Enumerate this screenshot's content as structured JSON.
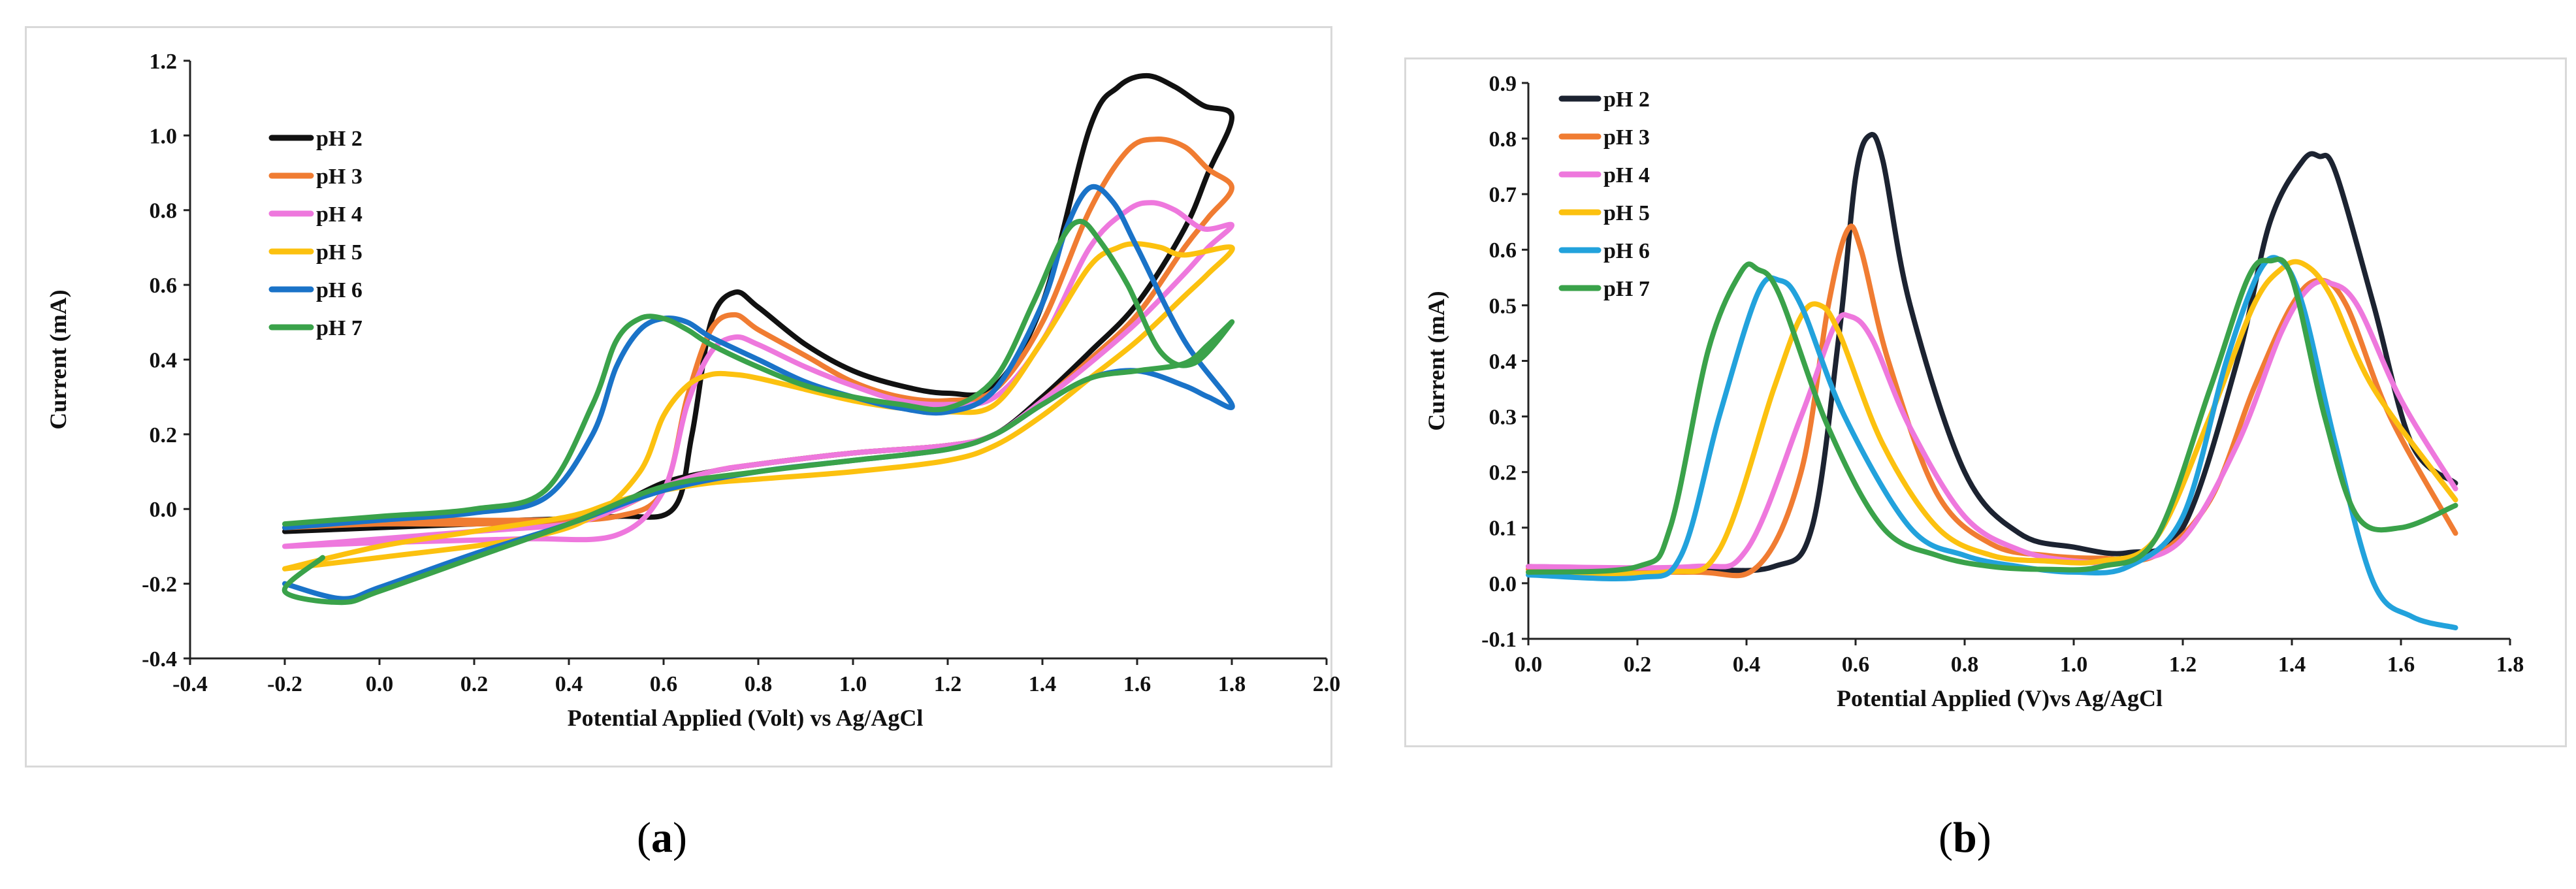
{
  "figure": {
    "captions": {
      "a": "a",
      "b": "b"
    }
  },
  "chart_data": [
    {
      "id": "a",
      "type": "line",
      "title": "",
      "xlabel": "Potential Applied (Volt) vs Ag/AgCl",
      "ylabel": "Current (mA)",
      "xlim": [
        -0.4,
        2.0
      ],
      "ylim": [
        -0.4,
        1.2
      ],
      "x_ticks": [
        -0.4,
        -0.2,
        0.0,
        0.2,
        0.4,
        0.6,
        0.8,
        1.0,
        1.2,
        1.4,
        1.6,
        1.8,
        2.0
      ],
      "y_ticks": [
        -0.4,
        -0.2,
        0.0,
        0.2,
        0.4,
        0.6,
        0.8,
        1.0,
        1.2
      ],
      "grid": false,
      "legend": "top-left",
      "series": [
        {
          "name": "pH 2",
          "color": "#111111",
          "x": [
            -0.2,
            0.0,
            0.3,
            0.5,
            0.62,
            0.66,
            0.7,
            0.75,
            0.8,
            0.9,
            1.0,
            1.1,
            1.2,
            1.3,
            1.4,
            1.5,
            1.56,
            1.62,
            1.68,
            1.74,
            1.8,
            1.75,
            1.7,
            1.6,
            1.5,
            1.4,
            1.3,
            1.2,
            1.0,
            0.8,
            0.7,
            0.6,
            0.5,
            0.4,
            0.2,
            0.0,
            -0.2
          ],
          "y": [
            -0.06,
            -0.04,
            -0.03,
            -0.02,
            0.0,
            0.2,
            0.5,
            0.58,
            0.54,
            0.44,
            0.37,
            0.33,
            0.31,
            0.33,
            0.55,
            1.02,
            1.13,
            1.16,
            1.13,
            1.08,
            1.05,
            0.9,
            0.75,
            0.55,
            0.42,
            0.3,
            0.2,
            0.17,
            0.15,
            0.12,
            0.1,
            0.07,
            0.01,
            -0.03,
            -0.04,
            -0.05,
            -0.06
          ]
        },
        {
          "name": "pH 3",
          "color": "#f07c32",
          "x": [
            -0.2,
            0.0,
            0.3,
            0.5,
            0.6,
            0.65,
            0.7,
            0.75,
            0.8,
            0.9,
            1.0,
            1.1,
            1.2,
            1.3,
            1.4,
            1.5,
            1.58,
            1.64,
            1.7,
            1.75,
            1.8,
            1.75,
            1.7,
            1.6,
            1.5,
            1.4,
            1.3,
            1.2,
            1.0,
            0.8,
            0.7,
            0.6,
            0.5,
            0.4,
            0.2,
            0.0,
            -0.2
          ],
          "y": [
            -0.05,
            -0.03,
            -0.03,
            -0.02,
            0.05,
            0.3,
            0.48,
            0.52,
            0.48,
            0.41,
            0.34,
            0.3,
            0.29,
            0.32,
            0.5,
            0.8,
            0.96,
            0.99,
            0.97,
            0.91,
            0.86,
            0.78,
            0.7,
            0.52,
            0.4,
            0.29,
            0.2,
            0.17,
            0.15,
            0.12,
            0.1,
            0.06,
            0.0,
            -0.03,
            -0.04,
            -0.04,
            -0.05
          ]
        },
        {
          "name": "pH 4",
          "color": "#ee78dd",
          "x": [
            -0.2,
            0.0,
            0.3,
            0.5,
            0.6,
            0.65,
            0.7,
            0.75,
            0.8,
            0.9,
            1.0,
            1.1,
            1.2,
            1.3,
            1.4,
            1.5,
            1.58,
            1.63,
            1.68,
            1.74,
            1.8,
            1.75,
            1.7,
            1.6,
            1.5,
            1.4,
            1.3,
            1.2,
            1.0,
            0.8,
            0.7,
            0.6,
            0.5,
            0.4,
            0.2,
            0.0,
            -0.2
          ],
          "y": [
            -0.1,
            -0.09,
            -0.08,
            -0.07,
            0.05,
            0.28,
            0.42,
            0.46,
            0.44,
            0.38,
            0.33,
            0.29,
            0.28,
            0.3,
            0.45,
            0.7,
            0.8,
            0.82,
            0.8,
            0.75,
            0.76,
            0.7,
            0.63,
            0.5,
            0.39,
            0.29,
            0.2,
            0.17,
            0.15,
            0.12,
            0.1,
            0.06,
            0.0,
            -0.04,
            -0.06,
            -0.08,
            -0.1
          ]
        },
        {
          "name": "pH 5",
          "color": "#fcc10f",
          "x": [
            -0.2,
            0.0,
            0.3,
            0.45,
            0.55,
            0.6,
            0.65,
            0.7,
            0.75,
            0.8,
            0.9,
            1.0,
            1.1,
            1.2,
            1.3,
            1.4,
            1.5,
            1.56,
            1.6,
            1.65,
            1.7,
            1.8,
            1.75,
            1.7,
            1.6,
            1.5,
            1.4,
            1.3,
            1.2,
            1.0,
            0.8,
            0.7,
            0.6,
            0.5,
            0.4,
            0.2,
            0.0,
            -0.2
          ],
          "y": [
            -0.16,
            -0.13,
            -0.08,
            -0.02,
            0.1,
            0.25,
            0.33,
            0.36,
            0.36,
            0.35,
            0.32,
            0.29,
            0.27,
            0.26,
            0.28,
            0.45,
            0.65,
            0.7,
            0.71,
            0.7,
            0.68,
            0.7,
            0.63,
            0.57,
            0.45,
            0.35,
            0.25,
            0.17,
            0.13,
            0.1,
            0.08,
            0.07,
            0.05,
            0.02,
            -0.02,
            -0.06,
            -0.1,
            -0.16
          ]
        },
        {
          "name": "pH 6",
          "color": "#1a73c8",
          "x": [
            -0.2,
            0.0,
            0.2,
            0.35,
            0.45,
            0.5,
            0.55,
            0.6,
            0.65,
            0.7,
            0.8,
            0.9,
            1.0,
            1.1,
            1.2,
            1.3,
            1.4,
            1.45,
            1.5,
            1.55,
            1.6,
            1.7,
            1.8,
            1.75,
            1.7,
            1.6,
            1.5,
            1.4,
            1.3,
            1.2,
            1.0,
            0.8,
            0.6,
            0.4,
            0.2,
            0.0,
            -0.08,
            -0.2
          ],
          "y": [
            -0.05,
            -0.03,
            -0.01,
            0.03,
            0.2,
            0.38,
            0.48,
            0.51,
            0.5,
            0.46,
            0.4,
            0.34,
            0.3,
            0.27,
            0.26,
            0.32,
            0.55,
            0.75,
            0.86,
            0.82,
            0.7,
            0.45,
            0.28,
            0.3,
            0.33,
            0.37,
            0.35,
            0.28,
            0.2,
            0.16,
            0.13,
            0.1,
            0.05,
            -0.04,
            -0.12,
            -0.21,
            -0.24,
            -0.2
          ]
        },
        {
          "name": "pH 7",
          "color": "#3aa24a",
          "x": [
            -0.2,
            0.0,
            0.2,
            0.35,
            0.45,
            0.5,
            0.55,
            0.6,
            0.65,
            0.7,
            0.8,
            0.9,
            1.0,
            1.1,
            1.2,
            1.3,
            1.38,
            1.44,
            1.48,
            1.52,
            1.58,
            1.65,
            1.72,
            1.8,
            1.75,
            1.7,
            1.6,
            1.5,
            1.4,
            1.3,
            1.2,
            1.0,
            0.8,
            0.6,
            0.4,
            0.2,
            0.0,
            -0.08,
            -0.2,
            -0.12
          ],
          "y": [
            -0.04,
            -0.02,
            0.0,
            0.05,
            0.28,
            0.45,
            0.51,
            0.51,
            0.48,
            0.44,
            0.38,
            0.33,
            0.3,
            0.28,
            0.27,
            0.35,
            0.55,
            0.72,
            0.77,
            0.72,
            0.6,
            0.42,
            0.39,
            0.5,
            0.44,
            0.39,
            0.37,
            0.35,
            0.28,
            0.2,
            0.16,
            0.13,
            0.1,
            0.06,
            -0.04,
            -0.13,
            -0.22,
            -0.25,
            -0.22,
            -0.13
          ]
        }
      ]
    },
    {
      "id": "b",
      "type": "line",
      "title": "",
      "xlabel": "Potential Applied (V)vs Ag/AgCl",
      "ylabel": "Current (mA)",
      "xlim": [
        0.0,
        1.8
      ],
      "ylim": [
        -0.1,
        0.9
      ],
      "x_ticks": [
        0.0,
        0.2,
        0.4,
        0.6,
        0.8,
        1.0,
        1.2,
        1.4,
        1.6,
        1.8
      ],
      "y_ticks": [
        -0.1,
        0.0,
        0.1,
        0.2,
        0.3,
        0.4,
        0.5,
        0.6,
        0.7,
        0.8,
        0.9
      ],
      "grid": false,
      "legend": "top-left",
      "series": [
        {
          "name": "pH 2",
          "color": "#1c2331",
          "x": [
            0.0,
            0.3,
            0.45,
            0.52,
            0.57,
            0.6,
            0.625,
            0.65,
            0.7,
            0.8,
            0.9,
            1.0,
            1.1,
            1.2,
            1.3,
            1.36,
            1.42,
            1.45,
            1.48,
            1.55,
            1.62,
            1.7
          ],
          "y": [
            0.03,
            0.025,
            0.03,
            0.1,
            0.45,
            0.73,
            0.805,
            0.76,
            0.5,
            0.2,
            0.09,
            0.065,
            0.055,
            0.1,
            0.4,
            0.65,
            0.76,
            0.768,
            0.74,
            0.5,
            0.25,
            0.18
          ]
        },
        {
          "name": "pH 3",
          "color": "#f07c32",
          "x": [
            0.0,
            0.3,
            0.42,
            0.5,
            0.55,
            0.585,
            0.61,
            0.66,
            0.75,
            0.85,
            0.95,
            1.05,
            1.15,
            1.25,
            1.33,
            1.4,
            1.45,
            1.5,
            1.58,
            1.7
          ],
          "y": [
            0.025,
            0.02,
            0.03,
            0.2,
            0.5,
            0.635,
            0.6,
            0.4,
            0.16,
            0.07,
            0.05,
            0.045,
            0.05,
            0.15,
            0.35,
            0.5,
            0.545,
            0.5,
            0.3,
            0.09
          ]
        },
        {
          "name": "pH 4",
          "color": "#ee78dd",
          "x": [
            0.0,
            0.3,
            0.4,
            0.5,
            0.56,
            0.59,
            0.63,
            0.7,
            0.8,
            0.9,
            1.0,
            1.1,
            1.2,
            1.3,
            1.38,
            1.43,
            1.47,
            1.52,
            1.6,
            1.7
          ],
          "y": [
            0.03,
            0.03,
            0.06,
            0.3,
            0.46,
            0.48,
            0.44,
            0.28,
            0.12,
            0.06,
            0.04,
            0.04,
            0.08,
            0.25,
            0.45,
            0.53,
            0.54,
            0.5,
            0.33,
            0.17
          ]
        },
        {
          "name": "pH 5",
          "color": "#fcc10f",
          "x": [
            0.0,
            0.25,
            0.35,
            0.45,
            0.5,
            0.535,
            0.57,
            0.65,
            0.75,
            0.85,
            0.95,
            1.05,
            1.15,
            1.25,
            1.33,
            1.38,
            1.42,
            1.47,
            1.55,
            1.7
          ],
          "y": [
            0.02,
            0.02,
            0.06,
            0.35,
            0.48,
            0.5,
            0.45,
            0.25,
            0.1,
            0.05,
            0.04,
            0.04,
            0.08,
            0.3,
            0.5,
            0.565,
            0.575,
            0.52,
            0.35,
            0.15
          ]
        },
        {
          "name": "pH 6",
          "color": "#22a2dc",
          "x": [
            0.0,
            0.2,
            0.28,
            0.35,
            0.42,
            0.46,
            0.5,
            0.58,
            0.7,
            0.8,
            0.9,
            1.0,
            1.1,
            1.2,
            1.28,
            1.34,
            1.38,
            1.42,
            1.48,
            1.55,
            1.62,
            1.7
          ],
          "y": [
            0.015,
            0.01,
            0.05,
            0.3,
            0.52,
            0.545,
            0.5,
            0.3,
            0.1,
            0.05,
            0.03,
            0.02,
            0.03,
            0.12,
            0.4,
            0.56,
            0.58,
            0.5,
            0.25,
            0.0,
            -0.06,
            -0.08
          ]
        },
        {
          "name": "pH 7",
          "color": "#3aa24a",
          "x": [
            0.0,
            0.2,
            0.26,
            0.33,
            0.39,
            0.42,
            0.46,
            0.55,
            0.65,
            0.75,
            0.85,
            0.95,
            1.05,
            1.15,
            1.25,
            1.32,
            1.36,
            1.4,
            1.46,
            1.52,
            1.6,
            1.7
          ],
          "y": [
            0.02,
            0.03,
            0.1,
            0.42,
            0.56,
            0.565,
            0.52,
            0.28,
            0.1,
            0.05,
            0.03,
            0.025,
            0.03,
            0.08,
            0.35,
            0.55,
            0.58,
            0.55,
            0.3,
            0.12,
            0.1,
            0.14
          ]
        }
      ]
    }
  ]
}
